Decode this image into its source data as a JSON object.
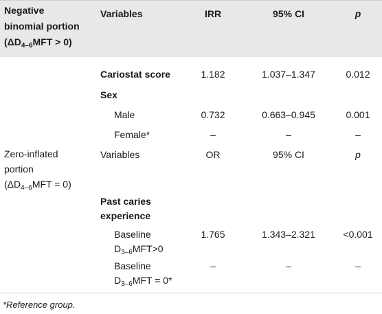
{
  "header": {
    "col1_line1": "Negative",
    "col1_line2": "binomial portion",
    "col1_line3_prefix": "(ΔD",
    "col1_line3_sub": "4–6",
    "col1_line3_suffix": "MFT > 0)",
    "variables": "Variables",
    "irr": "IRR",
    "ci": "95% CI",
    "p": "p"
  },
  "rows": {
    "cariostat": {
      "label": "Cariostat score",
      "irr": "1.182",
      "ci": "1.037–1.347",
      "p": "0.012"
    },
    "sex": {
      "label": "Sex"
    },
    "male": {
      "label": "Male",
      "irr": "0.732",
      "ci": "0.663–0.945",
      "p": "0.001"
    },
    "female": {
      "label": "Female*",
      "irr": "–",
      "ci": "–",
      "p": "–"
    },
    "zero_header": {
      "col1_line1": "Zero-inflated",
      "col1_line2": "portion",
      "col1_line3_prefix": "(ΔD",
      "col1_line3_sub": "4–6",
      "col1_line3_suffix": "MFT = 0)",
      "variables": "Variables",
      "or": "OR",
      "ci": "95% CI",
      "p": "p"
    },
    "past_caries": {
      "line1": "Past caries",
      "line2": "experience"
    },
    "baseline_pos": {
      "line1": "Baseline",
      "line2_prefix": "D",
      "line2_sub": "3–6",
      "line2_suffix": "MFT>0",
      "irr": "1.765",
      "ci": "1.343–2.321",
      "p": "<0.001"
    },
    "baseline_zero": {
      "line1": "Baseline",
      "line2_prefix": "D",
      "line2_sub": "3–6",
      "line2_suffix": "MFT = 0*",
      "irr": "–",
      "ci": "–",
      "p": "–"
    }
  },
  "footnote": "*Reference group."
}
